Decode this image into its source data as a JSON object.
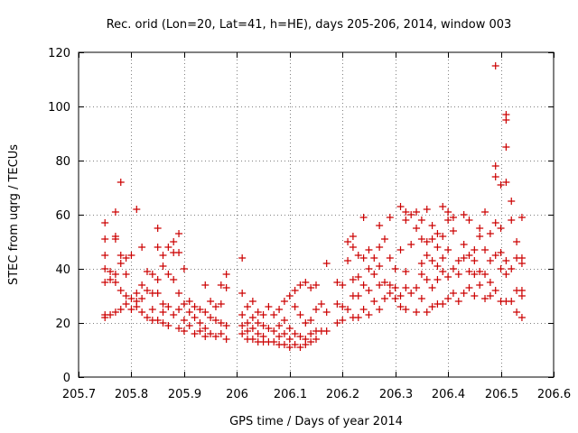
{
  "chart_data": {
    "type": "scatter",
    "title": "Rec. orid (Lon=20, Lat=41, h=HE), days 205-206, 2014, window 003",
    "xlabel": "GPS time / Days of year 2014",
    "ylabel": "STEC from uqrg / TECUs",
    "xlim": [
      205.7,
      206.6
    ],
    "ylim": [
      0,
      120
    ],
    "xticks": [
      205.7,
      205.8,
      205.9,
      206,
      206.1,
      206.2,
      206.3,
      206.4,
      206.5,
      206.6
    ],
    "xtick_labels": [
      "205.7",
      "205.8",
      "205.9",
      "206",
      "206.1",
      "206.2",
      "206.3",
      "206.4",
      "206.5",
      "206.6"
    ],
    "yticks": [
      0,
      20,
      40,
      60,
      80,
      100,
      120
    ],
    "ytick_labels": [
      "0",
      "20",
      "40",
      "60",
      "80",
      "100",
      "120"
    ],
    "grid": true,
    "marker": "+",
    "color": "#cc0000",
    "series": [
      {
        "name": "STEC",
        "points": [
          [
            205.75,
            57
          ],
          [
            205.75,
            51
          ],
          [
            205.75,
            45
          ],
          [
            205.75,
            40
          ],
          [
            205.75,
            35
          ],
          [
            205.75,
            23
          ],
          [
            205.75,
            22
          ],
          [
            205.76,
            39
          ],
          [
            205.76,
            36
          ],
          [
            205.76,
            23
          ],
          [
            205.77,
            61
          ],
          [
            205.77,
            52
          ],
          [
            205.77,
            51
          ],
          [
            205.77,
            38
          ],
          [
            205.77,
            35
          ],
          [
            205.77,
            24
          ],
          [
            205.78,
            72
          ],
          [
            205.78,
            45
          ],
          [
            205.78,
            42
          ],
          [
            205.78,
            32
          ],
          [
            205.78,
            25
          ],
          [
            205.79,
            44
          ],
          [
            205.79,
            38
          ],
          [
            205.79,
            30
          ],
          [
            205.79,
            27
          ],
          [
            205.8,
            45
          ],
          [
            205.8,
            29
          ],
          [
            205.8,
            25
          ],
          [
            205.81,
            62
          ],
          [
            205.81,
            31
          ],
          [
            205.81,
            28
          ],
          [
            205.81,
            26
          ],
          [
            205.82,
            48
          ],
          [
            205.82,
            34
          ],
          [
            205.82,
            29
          ],
          [
            205.82,
            24
          ],
          [
            205.83,
            39
          ],
          [
            205.83,
            32
          ],
          [
            205.83,
            22
          ],
          [
            205.84,
            38
          ],
          [
            205.84,
            31
          ],
          [
            205.84,
            25
          ],
          [
            205.84,
            21
          ],
          [
            205.85,
            55
          ],
          [
            205.85,
            48
          ],
          [
            205.85,
            36
          ],
          [
            205.85,
            31
          ],
          [
            205.85,
            21
          ],
          [
            205.86,
            45
          ],
          [
            205.86,
            41
          ],
          [
            205.86,
            27
          ],
          [
            205.86,
            24
          ],
          [
            205.86,
            20
          ],
          [
            205.87,
            48
          ],
          [
            205.87,
            38
          ],
          [
            205.87,
            26
          ],
          [
            205.87,
            19
          ],
          [
            205.88,
            50
          ],
          [
            205.88,
            46
          ],
          [
            205.88,
            36
          ],
          [
            205.88,
            23
          ],
          [
            205.89,
            53
          ],
          [
            205.89,
            46
          ],
          [
            205.89,
            31
          ],
          [
            205.89,
            25
          ],
          [
            205.89,
            18
          ],
          [
            205.9,
            40
          ],
          [
            205.9,
            27
          ],
          [
            205.9,
            21
          ],
          [
            205.9,
            17
          ],
          [
            205.91,
            28
          ],
          [
            205.91,
            24
          ],
          [
            205.91,
            19
          ],
          [
            205.92,
            26
          ],
          [
            205.92,
            22
          ],
          [
            205.92,
            16
          ],
          [
            205.93,
            25
          ],
          [
            205.93,
            20
          ],
          [
            205.93,
            17
          ],
          [
            205.94,
            34
          ],
          [
            205.94,
            24
          ],
          [
            205.94,
            18
          ],
          [
            205.94,
            15
          ],
          [
            205.95,
            28
          ],
          [
            205.95,
            22
          ],
          [
            205.95,
            16
          ],
          [
            205.96,
            26
          ],
          [
            205.96,
            21
          ],
          [
            205.96,
            15
          ],
          [
            205.97,
            34
          ],
          [
            205.97,
            27
          ],
          [
            205.97,
            20
          ],
          [
            205.97,
            16
          ],
          [
            205.98,
            38
          ],
          [
            205.98,
            33
          ],
          [
            205.98,
            19
          ],
          [
            205.98,
            14
          ],
          [
            206.01,
            44
          ],
          [
            206.01,
            31
          ],
          [
            206.01,
            23
          ],
          [
            206.01,
            19
          ],
          [
            206.01,
            16
          ],
          [
            206.02,
            26
          ],
          [
            206.02,
            20
          ],
          [
            206.02,
            17
          ],
          [
            206.02,
            14
          ],
          [
            206.03,
            28
          ],
          [
            206.03,
            22
          ],
          [
            206.03,
            18
          ],
          [
            206.03,
            14
          ],
          [
            206.04,
            24
          ],
          [
            206.04,
            20
          ],
          [
            206.04,
            16
          ],
          [
            206.04,
            13
          ],
          [
            206.05,
            23
          ],
          [
            206.05,
            19
          ],
          [
            206.05,
            15
          ],
          [
            206.05,
            13
          ],
          [
            206.06,
            26
          ],
          [
            206.06,
            18
          ],
          [
            206.06,
            13
          ],
          [
            206.07,
            23
          ],
          [
            206.07,
            17
          ],
          [
            206.07,
            13
          ],
          [
            206.08,
            25
          ],
          [
            206.08,
            19
          ],
          [
            206.08,
            15
          ],
          [
            206.08,
            12
          ],
          [
            206.09,
            28
          ],
          [
            206.09,
            21
          ],
          [
            206.09,
            16
          ],
          [
            206.09,
            12
          ],
          [
            206.1,
            30
          ],
          [
            206.1,
            18
          ],
          [
            206.1,
            14
          ],
          [
            206.1,
            11
          ],
          [
            206.11,
            32
          ],
          [
            206.11,
            26
          ],
          [
            206.11,
            16
          ],
          [
            206.11,
            12
          ],
          [
            206.12,
            34
          ],
          [
            206.12,
            23
          ],
          [
            206.12,
            15
          ],
          [
            206.12,
            11
          ],
          [
            206.13,
            35
          ],
          [
            206.13,
            20
          ],
          [
            206.13,
            14
          ],
          [
            206.13,
            12
          ],
          [
            206.14,
            33
          ],
          [
            206.14,
            21
          ],
          [
            206.14,
            16
          ],
          [
            206.14,
            13
          ],
          [
            206.15,
            34
          ],
          [
            206.15,
            25
          ],
          [
            206.15,
            17
          ],
          [
            206.15,
            14
          ],
          [
            206.16,
            27
          ],
          [
            206.16,
            17
          ],
          [
            206.17,
            42
          ],
          [
            206.17,
            24
          ],
          [
            206.17,
            17
          ],
          [
            206.19,
            35
          ],
          [
            206.19,
            27
          ],
          [
            206.19,
            20
          ],
          [
            206.2,
            34
          ],
          [
            206.2,
            26
          ],
          [
            206.2,
            21
          ],
          [
            206.21,
            50
          ],
          [
            206.21,
            43
          ],
          [
            206.21,
            25
          ],
          [
            206.22,
            52
          ],
          [
            206.22,
            48
          ],
          [
            206.22,
            36
          ],
          [
            206.22,
            30
          ],
          [
            206.22,
            22
          ],
          [
            206.23,
            45
          ],
          [
            206.23,
            37
          ],
          [
            206.23,
            30
          ],
          [
            206.23,
            22
          ],
          [
            206.24,
            59
          ],
          [
            206.24,
            44
          ],
          [
            206.24,
            34
          ],
          [
            206.24,
            25
          ],
          [
            206.25,
            47
          ],
          [
            206.25,
            40
          ],
          [
            206.25,
            32
          ],
          [
            206.25,
            23
          ],
          [
            206.26,
            44
          ],
          [
            206.26,
            38
          ],
          [
            206.26,
            28
          ],
          [
            206.27,
            56
          ],
          [
            206.27,
            48
          ],
          [
            206.27,
            41
          ],
          [
            206.27,
            34
          ],
          [
            206.27,
            25
          ],
          [
            206.28,
            51
          ],
          [
            206.28,
            35
          ],
          [
            206.28,
            29
          ],
          [
            206.29,
            59
          ],
          [
            206.29,
            44
          ],
          [
            206.29,
            34
          ],
          [
            206.29,
            31
          ],
          [
            206.3,
            40
          ],
          [
            206.3,
            33
          ],
          [
            206.3,
            29
          ],
          [
            206.31,
            63
          ],
          [
            206.31,
            47
          ],
          [
            206.31,
            30
          ],
          [
            206.31,
            26
          ],
          [
            206.32,
            61
          ],
          [
            206.32,
            58
          ],
          [
            206.32,
            39
          ],
          [
            206.32,
            33
          ],
          [
            206.32,
            25
          ],
          [
            206.33,
            60
          ],
          [
            206.33,
            49
          ],
          [
            206.33,
            31
          ],
          [
            206.34,
            61
          ],
          [
            206.34,
            55
          ],
          [
            206.34,
            33
          ],
          [
            206.34,
            24
          ],
          [
            206.35,
            58
          ],
          [
            206.35,
            51
          ],
          [
            206.35,
            42
          ],
          [
            206.35,
            38
          ],
          [
            206.35,
            29
          ],
          [
            206.36,
            62
          ],
          [
            206.36,
            50
          ],
          [
            206.36,
            45
          ],
          [
            206.36,
            36
          ],
          [
            206.36,
            24
          ],
          [
            206.37,
            56
          ],
          [
            206.37,
            51
          ],
          [
            206.37,
            43
          ],
          [
            206.37,
            33
          ],
          [
            206.37,
            26
          ],
          [
            206.38,
            53
          ],
          [
            206.38,
            48
          ],
          [
            206.38,
            41
          ],
          [
            206.38,
            36
          ],
          [
            206.38,
            27
          ],
          [
            206.39,
            63
          ],
          [
            206.39,
            52
          ],
          [
            206.39,
            44
          ],
          [
            206.39,
            39
          ],
          [
            206.39,
            27
          ],
          [
            206.4,
            61
          ],
          [
            206.4,
            58
          ],
          [
            206.4,
            47
          ],
          [
            206.4,
            37
          ],
          [
            206.4,
            29
          ],
          [
            206.41,
            59
          ],
          [
            206.41,
            54
          ],
          [
            206.41,
            40
          ],
          [
            206.41,
            31
          ],
          [
            206.42,
            43
          ],
          [
            206.42,
            38
          ],
          [
            206.42,
            28
          ],
          [
            206.43,
            60
          ],
          [
            206.43,
            49
          ],
          [
            206.43,
            44
          ],
          [
            206.43,
            31
          ],
          [
            206.44,
            58
          ],
          [
            206.44,
            45
          ],
          [
            206.44,
            39
          ],
          [
            206.44,
            33
          ],
          [
            206.45,
            47
          ],
          [
            206.45,
            43
          ],
          [
            206.45,
            38
          ],
          [
            206.45,
            30
          ],
          [
            206.46,
            55
          ],
          [
            206.46,
            52
          ],
          [
            206.46,
            39
          ],
          [
            206.46,
            34
          ],
          [
            206.47,
            61
          ],
          [
            206.47,
            47
          ],
          [
            206.47,
            38
          ],
          [
            206.47,
            29
          ],
          [
            206.48,
            53
          ],
          [
            206.48,
            43
          ],
          [
            206.48,
            35
          ],
          [
            206.48,
            30
          ],
          [
            206.49,
            115
          ],
          [
            206.49,
            78
          ],
          [
            206.49,
            74
          ],
          [
            206.49,
            57
          ],
          [
            206.49,
            45
          ],
          [
            206.49,
            32
          ],
          [
            206.5,
            71
          ],
          [
            206.5,
            55
          ],
          [
            206.5,
            46
          ],
          [
            206.5,
            40
          ],
          [
            206.5,
            28
          ],
          [
            206.51,
            97
          ],
          [
            206.51,
            95
          ],
          [
            206.51,
            85
          ],
          [
            206.51,
            72
          ],
          [
            206.51,
            43
          ],
          [
            206.51,
            38
          ],
          [
            206.51,
            28
          ],
          [
            206.52,
            65
          ],
          [
            206.52,
            58
          ],
          [
            206.52,
            40
          ],
          [
            206.52,
            28
          ],
          [
            206.53,
            50
          ],
          [
            206.53,
            44
          ],
          [
            206.53,
            32
          ],
          [
            206.53,
            24
          ],
          [
            206.54,
            59
          ],
          [
            206.54,
            44
          ],
          [
            206.54,
            42
          ],
          [
            206.54,
            32
          ],
          [
            206.54,
            30
          ],
          [
            206.54,
            22
          ]
        ]
      }
    ]
  }
}
